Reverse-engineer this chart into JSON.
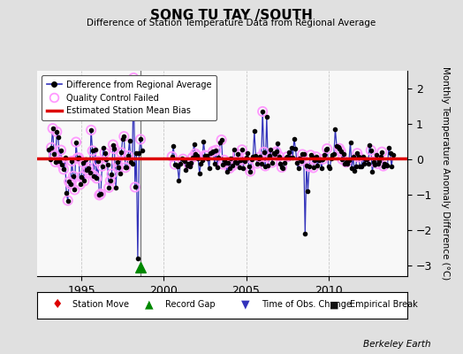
{
  "title": "SONG TU TAY /SOUTH",
  "subtitle": "Difference of Station Temperature Data from Regional Average",
  "ylabel": "Monthly Temperature Anomaly Difference (°C)",
  "bias_value": 0.02,
  "xlim": [
    1992.3,
    2014.8
  ],
  "ylim": [
    -3.3,
    2.5
  ],
  "yticks": [
    -3,
    -2,
    -1,
    0,
    1,
    2
  ],
  "xticks": [
    1995,
    2000,
    2005,
    2010
  ],
  "bg_color": "#e0e0e0",
  "plot_bg_color": "#f8f8f8",
  "line_color": "#3333bb",
  "bias_color": "#dd0000",
  "qc_color": "#ff99ff",
  "vertical_line_x": 1998.58,
  "record_gap_x": 1998.58,
  "seed": 42,
  "n_points": 252,
  "start_year": 1993.0,
  "gap_start": 1998.67,
  "gap_end": 2000.42
}
